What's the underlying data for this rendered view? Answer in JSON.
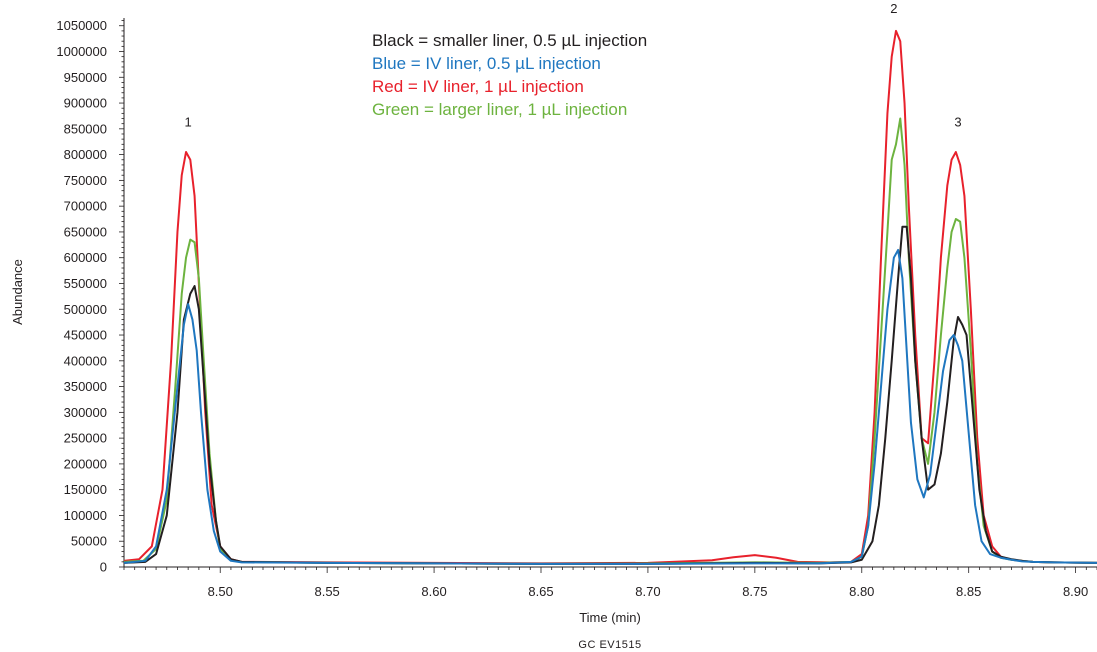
{
  "chart_data": {
    "type": "line",
    "xlabel": "Time (min)",
    "ylabel": "Abundance",
    "xlim": [
      8.455,
      8.91
    ],
    "ylim": [
      0,
      1065000
    ],
    "x_ticks": [
      8.5,
      8.55,
      8.6,
      8.65,
      8.7,
      8.75,
      8.8,
      8.85,
      8.9
    ],
    "x_tick_labels": [
      "8.50",
      "8.55",
      "8.60",
      "8.65",
      "8.70",
      "8.75",
      "8.80",
      "8.85",
      "8.90"
    ],
    "y_ticks": [
      0,
      50000,
      100000,
      150000,
      200000,
      250000,
      300000,
      350000,
      400000,
      450000,
      500000,
      550000,
      600000,
      650000,
      700000,
      750000,
      800000,
      850000,
      900000,
      950000,
      1000000,
      1050000
    ],
    "y_tick_labels": [
      "0",
      "50000",
      "100000",
      "150000",
      "200000",
      "250000",
      "300000",
      "350000",
      "400000",
      "450000",
      "500000",
      "550000",
      "600000",
      "650000",
      "700000",
      "750000",
      "800000",
      "850000",
      "900000",
      "950000",
      "1000000",
      "1050000"
    ],
    "grid": false,
    "legend_position": "top-center",
    "legend": [
      {
        "text": "Black = smaller liner, 0.5 µL injection",
        "color": "#231f20"
      },
      {
        "text": "Blue = IV liner, 0.5 µL injection",
        "color": "#1f77c0"
      },
      {
        "text": "Red = IV liner, 1 µL injection",
        "color": "#e8212c"
      },
      {
        "text": "Green = larger liner, 1 µL injection",
        "color": "#6db33f"
      }
    ],
    "annotations": [
      {
        "text": "1",
        "x": 8.485,
        "y": 855000
      },
      {
        "text": "2",
        "x": 8.815,
        "y": 1075000
      },
      {
        "text": "3",
        "x": 8.845,
        "y": 855000
      }
    ],
    "series": [
      {
        "color": "#231f20",
        "x": [
          8.455,
          8.465,
          8.47,
          8.475,
          8.48,
          8.483,
          8.486,
          8.488,
          8.49,
          8.492,
          8.495,
          8.498,
          8.5,
          8.505,
          8.51,
          8.55,
          8.6,
          8.65,
          8.7,
          8.75,
          8.78,
          8.795,
          8.8,
          8.805,
          8.808,
          8.811,
          8.814,
          8.817,
          8.819,
          8.821,
          8.823,
          8.825,
          8.828,
          8.831,
          8.834,
          8.837,
          8.84,
          8.843,
          8.845,
          8.847,
          8.849,
          8.852,
          8.855,
          8.858,
          8.861,
          8.865,
          8.87,
          8.875,
          8.88,
          8.89,
          8.91
        ],
        "y": [
          8000,
          10000,
          25000,
          100000,
          300000,
          480000,
          530000,
          545000,
          500000,
          380000,
          200000,
          90000,
          40000,
          15000,
          10000,
          8000,
          7000,
          6000,
          6000,
          8000,
          7000,
          9000,
          14000,
          50000,
          120000,
          250000,
          400000,
          560000,
          660000,
          660000,
          560000,
          400000,
          250000,
          150000,
          160000,
          220000,
          320000,
          440000,
          485000,
          470000,
          450000,
          300000,
          150000,
          70000,
          30000,
          20000,
          15000,
          12000,
          10000,
          9000,
          8000
        ]
      },
      {
        "color": "#1f77c0",
        "x": [
          8.455,
          8.465,
          8.47,
          8.475,
          8.48,
          8.483,
          8.485,
          8.487,
          8.489,
          8.491,
          8.494,
          8.497,
          8.5,
          8.505,
          8.51,
          8.55,
          8.6,
          8.65,
          8.7,
          8.75,
          8.78,
          8.795,
          8.8,
          8.803,
          8.806,
          8.809,
          8.812,
          8.815,
          8.817,
          8.819,
          8.821,
          8.823,
          8.826,
          8.829,
          8.832,
          8.835,
          8.838,
          8.841,
          8.843,
          8.845,
          8.847,
          8.85,
          8.853,
          8.856,
          8.86,
          8.865,
          8.87,
          8.875,
          8.88,
          8.89,
          8.91
        ],
        "y": [
          8000,
          12000,
          40000,
          150000,
          350000,
          470000,
          510000,
          480000,
          420000,
          300000,
          150000,
          70000,
          30000,
          12000,
          9000,
          8000,
          7000,
          6000,
          6000,
          7000,
          7000,
          10000,
          20000,
          80000,
          200000,
          350000,
          500000,
          600000,
          615000,
          560000,
          420000,
          280000,
          170000,
          135000,
          180000,
          280000,
          380000,
          440000,
          450000,
          430000,
          400000,
          260000,
          120000,
          50000,
          25000,
          18000,
          14000,
          11000,
          10000,
          9000,
          8000
        ]
      },
      {
        "color": "#e8212c",
        "x": [
          8.455,
          8.462,
          8.468,
          8.473,
          8.477,
          8.48,
          8.482,
          8.484,
          8.486,
          8.488,
          8.49,
          8.493,
          8.496,
          8.5,
          8.505,
          8.51,
          8.55,
          8.6,
          8.65,
          8.7,
          8.73,
          8.74,
          8.75,
          8.76,
          8.77,
          8.785,
          8.795,
          8.8,
          8.803,
          8.806,
          8.809,
          8.812,
          8.814,
          8.816,
          8.818,
          8.82,
          8.822,
          8.825,
          8.828,
          8.831,
          8.834,
          8.837,
          8.84,
          8.842,
          8.844,
          8.846,
          8.848,
          8.851,
          8.854,
          8.857,
          8.861,
          8.865,
          8.87,
          8.875,
          8.88,
          8.89,
          8.91
        ],
        "y": [
          12000,
          15000,
          40000,
          150000,
          400000,
          650000,
          760000,
          805000,
          790000,
          720000,
          550000,
          300000,
          120000,
          40000,
          15000,
          10000,
          9000,
          8000,
          7000,
          8000,
          13000,
          19000,
          23000,
          18000,
          10000,
          9000,
          10000,
          25000,
          100000,
          300000,
          600000,
          880000,
          990000,
          1040000,
          1020000,
          900000,
          700000,
          450000,
          250000,
          240000,
          400000,
          600000,
          740000,
          790000,
          805000,
          780000,
          720000,
          500000,
          250000,
          100000,
          40000,
          20000,
          14000,
          12000,
          10000,
          9000,
          8000
        ]
      },
      {
        "color": "#6db33f",
        "x": [
          8.455,
          8.464,
          8.47,
          8.475,
          8.479,
          8.482,
          8.484,
          8.486,
          8.488,
          8.49,
          8.492,
          8.495,
          8.498,
          8.5,
          8.505,
          8.51,
          8.55,
          8.6,
          8.65,
          8.7,
          8.75,
          8.78,
          8.795,
          8.8,
          8.803,
          8.806,
          8.809,
          8.812,
          8.814,
          8.816,
          8.818,
          8.82,
          8.822,
          8.825,
          8.828,
          8.831,
          8.834,
          8.837,
          8.84,
          8.842,
          8.844,
          8.846,
          8.848,
          8.851,
          8.854,
          8.857,
          8.861,
          8.865,
          8.87,
          8.875,
          8.88,
          8.89,
          8.91
        ],
        "y": [
          10000,
          12000,
          35000,
          130000,
          350000,
          530000,
          600000,
          635000,
          630000,
          560000,
          420000,
          220000,
          90000,
          35000,
          14000,
          10000,
          8000,
          7000,
          6000,
          7000,
          9000,
          8000,
          10000,
          20000,
          80000,
          250000,
          450000,
          650000,
          790000,
          820000,
          870000,
          780000,
          600000,
          400000,
          250000,
          200000,
          300000,
          450000,
          580000,
          650000,
          675000,
          670000,
          600000,
          420000,
          200000,
          80000,
          30000,
          18000,
          14000,
          12000,
          10000,
          9000,
          8000
        ]
      }
    ]
  },
  "footer": {
    "code": "GC  EV1515"
  }
}
